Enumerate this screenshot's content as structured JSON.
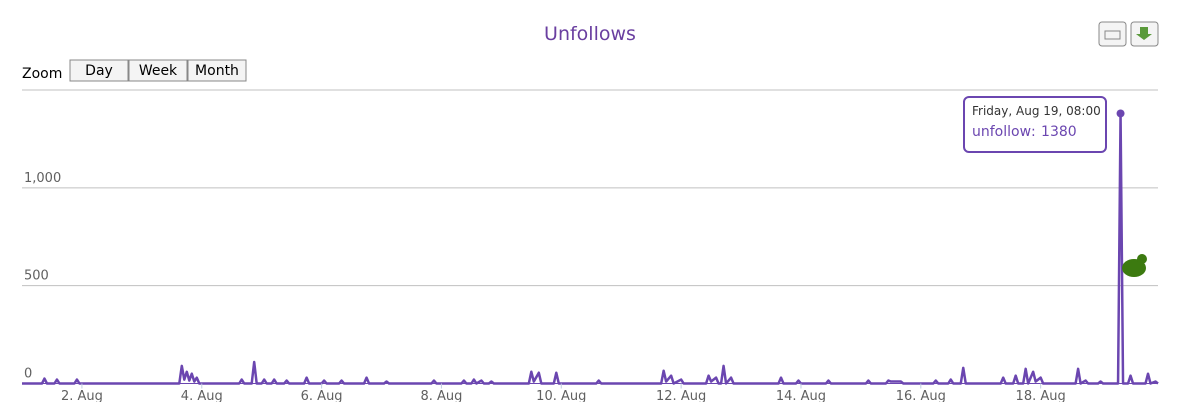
{
  "chart_data": {
    "type": "line",
    "title": "Unfollows",
    "zoom": {
      "label": "Zoom",
      "buttons": [
        "Day",
        "Week",
        "Month"
      ]
    },
    "tooltip": {
      "header": "Friday, Aug 19, 08:00"
    },
    "x": [
      "Aug 1, 00:00",
      "Aug 1, 08:00",
      "Aug 1, 09:00",
      "Aug 1, 10:00",
      "Aug 1, 13:00",
      "Aug 1, 14:00",
      "Aug 1, 15:00",
      "Aug 1, 21:00",
      "Aug 1, 22:00",
      "Aug 1, 23:00",
      "Aug 3, 15:00",
      "Aug 3, 16:00",
      "Aug 3, 17:00",
      "Aug 3, 18:00",
      "Aug 3, 19:00",
      "Aug 3, 20:00",
      "Aug 3, 21:00",
      "Aug 3, 22:00",
      "Aug 3, 23:00",
      "Aug 4, 15:00",
      "Aug 4, 16:00",
      "Aug 4, 17:00",
      "Aug 4, 20:00",
      "Aug 4, 21:00",
      "Aug 4, 22:00",
      "Aug 5, 00:00",
      "Aug 5, 01:00",
      "Aug 5, 02:00",
      "Aug 5, 04:00",
      "Aug 5, 05:00",
      "Aug 5, 06:00",
      "Aug 5, 09:00",
      "Aug 5, 10:00",
      "Aug 5, 11:00",
      "Aug 5, 17:00",
      "Aug 5, 18:00",
      "Aug 5, 19:00",
      "Aug 6, 00:00",
      "Aug 6, 01:00",
      "Aug 6, 02:00",
      "Aug 6, 07:00",
      "Aug 6, 08:00",
      "Aug 6, 09:00",
      "Aug 6, 17:00",
      "Aug 6, 18:00",
      "Aug 6, 19:00",
      "Aug 7, 01:00",
      "Aug 7, 02:00",
      "Aug 7, 03:00",
      "Aug 7, 20:00",
      "Aug 7, 21:00",
      "Aug 7, 22:00",
      "Aug 8, 08:00",
      "Aug 8, 09:00",
      "Aug 8, 10:00",
      "Aug 8, 12:00",
      "Aug 8, 13:00",
      "Aug 8, 14:00",
      "Aug 8, 16:00",
      "Aug 8, 17:00",
      "Aug 8, 19:00",
      "Aug 8, 20:00",
      "Aug 8, 21:00",
      "Aug 9, 11:00",
      "Aug 9, 12:00",
      "Aug 9, 13:00",
      "Aug 9, 15:00",
      "Aug 9, 16:00",
      "Aug 9, 21:00",
      "Aug 9, 22:00",
      "Aug 9, 23:00",
      "Aug 10, 14:00",
      "Aug 10, 15:00",
      "Aug 10, 16:00",
      "Aug 11, 16:00",
      "Aug 11, 17:00",
      "Aug 11, 18:00",
      "Aug 11, 20:00",
      "Aug 11, 21:00",
      "Aug 12, 00:00",
      "Aug 12, 01:00",
      "Aug 12, 10:00",
      "Aug 12, 11:00",
      "Aug 12, 12:00",
      "Aug 12, 14:00",
      "Aug 12, 15:00",
      "Aug 12, 16:00",
      "Aug 12, 17:00",
      "Aug 12, 18:00",
      "Aug 12, 20:00",
      "Aug 12, 21:00",
      "Aug 13, 15:00",
      "Aug 13, 16:00",
      "Aug 13, 17:00",
      "Aug 13, 22:00",
      "Aug 13, 23:00",
      "Aug 14, 00:00",
      "Aug 14, 10:00",
      "Aug 14, 11:00",
      "Aug 14, 12:00",
      "Aug 15, 02:00",
      "Aug 15, 03:00",
      "Aug 15, 04:00",
      "Aug 15, 10:00",
      "Aug 15, 11:00",
      "Aug 15, 12:00",
      "Aug 15, 16:00",
      "Aug 15, 17:00",
      "Aug 16, 05:00",
      "Aug 16, 06:00",
      "Aug 16, 07:00",
      "Aug 16, 11:00",
      "Aug 16, 12:00",
      "Aug 16, 13:00",
      "Aug 16, 16:00",
      "Aug 16, 17:00",
      "Aug 16, 18:00",
      "Aug 17, 08:00",
      "Aug 17, 09:00",
      "Aug 17, 10:00",
      "Aug 17, 13:00",
      "Aug 17, 14:00",
      "Aug 17, 15:00",
      "Aug 17, 17:00",
      "Aug 17, 18:00",
      "Aug 17, 19:00",
      "Aug 17, 21:00",
      "Aug 17, 22:00",
      "Aug 18, 00:00",
      "Aug 18, 01:00",
      "Aug 18, 14:00",
      "Aug 18, 15:00",
      "Aug 18, 16:00",
      "Aug 18, 18:00",
      "Aug 18, 19:00",
      "Aug 18, 23:00",
      "Aug 19, 00:00",
      "Aug 19, 01:00",
      "Aug 19, 07:00",
      "Aug 19, 08:00",
      "Aug 19, 09:00",
      "Aug 19, 11:00",
      "Aug 19, 12:00",
      "Aug 19, 13:00",
      "Aug 19, 18:00",
      "Aug 19, 19:00",
      "Aug 19, 20:00",
      "Aug 19, 22:00",
      "Aug 19, 23:00"
    ],
    "series": [
      {
        "name": "unfollow",
        "color": "#6b46b0",
        "values": [
          0,
          0,
          25,
          0,
          0,
          20,
          0,
          0,
          20,
          0,
          0,
          90,
          20,
          60,
          15,
          50,
          10,
          30,
          0,
          0,
          20,
          0,
          0,
          110,
          0,
          0,
          20,
          0,
          0,
          20,
          0,
          0,
          15,
          0,
          0,
          30,
          0,
          0,
          15,
          0,
          0,
          15,
          0,
          0,
          30,
          0,
          0,
          10,
          0,
          0,
          15,
          0,
          0,
          15,
          0,
          0,
          20,
          0,
          15,
          0,
          0,
          10,
          0,
          0,
          60,
          10,
          55,
          0,
          0,
          55,
          0,
          0,
          15,
          0,
          0,
          65,
          10,
          40,
          0,
          20,
          0,
          0,
          40,
          10,
          30,
          0,
          0,
          90,
          0,
          30,
          0,
          0,
          30,
          0,
          0,
          15,
          0,
          0,
          15,
          0,
          0,
          15,
          0,
          0,
          15,
          10,
          10,
          0,
          0,
          15,
          0,
          0,
          20,
          0,
          0,
          80,
          0,
          0,
          30,
          0,
          0,
          40,
          0,
          0,
          75,
          0,
          60,
          10,
          30,
          0,
          0,
          75,
          0,
          15,
          0,
          0,
          10,
          0,
          0,
          1380,
          0,
          0,
          40,
          0,
          0,
          50,
          0,
          10,
          0
        ]
      }
    ],
    "xlim": [
      "Aug 1, 00:00",
      "Aug 19, 23:00"
    ],
    "xticks": [
      {
        "value": "Aug 2, 00:00",
        "label": "2. Aug"
      },
      {
        "value": "Aug 4, 00:00",
        "label": "4. Aug"
      },
      {
        "value": "Aug 6, 00:00",
        "label": "6. Aug"
      },
      {
        "value": "Aug 8, 00:00",
        "label": "8. Aug"
      },
      {
        "value": "Aug 10, 00:00",
        "label": "10. Aug"
      },
      {
        "value": "Aug 12, 00:00",
        "label": "12. Aug"
      },
      {
        "value": "Aug 14, 00:00",
        "label": "14. Aug"
      },
      {
        "value": "Aug 16, 00:00",
        "label": "16. Aug"
      },
      {
        "value": "Aug 18, 00:00",
        "label": "18. Aug"
      }
    ],
    "ylim": [
      0,
      1500
    ],
    "yticks": [
      0,
      500,
      {
        "value": 1000,
        "label": "1,000"
      }
    ],
    "grid": true
  }
}
